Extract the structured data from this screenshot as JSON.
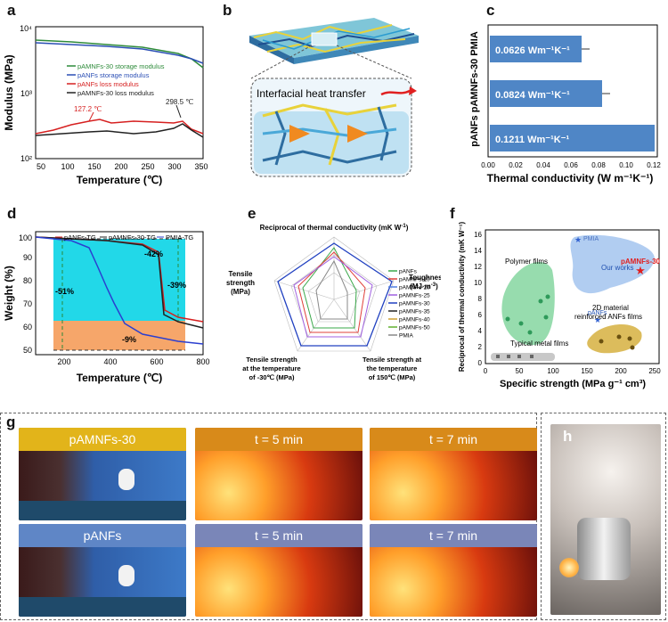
{
  "panel_labels": {
    "a": "a",
    "b": "b",
    "c": "c",
    "d": "d",
    "e": "e",
    "f": "f",
    "g": "g",
    "h": "h"
  },
  "panel_a": {
    "ylabel": "Modulus (MPa)",
    "xlabel": "Temperature (℃)",
    "y_ticks": [
      "10²",
      "10³",
      "10⁴"
    ],
    "x_ticks": [
      "50",
      "100",
      "150",
      "200",
      "250",
      "300",
      "350"
    ],
    "legend": [
      "pAMNFs-30 storage modulus",
      "pANFs storage modulus",
      "pANFs loss modulus",
      "pAMNFs-30 loss modulus"
    ],
    "ann1": "127.2 ℃",
    "ann2": "298.5 ℃",
    "colors": {
      "green": "#2e8b3a",
      "blue": "#2b4fb5",
      "red": "#d62020",
      "black": "#222222"
    }
  },
  "panel_b": {
    "caption": "Interfacial heat transfer"
  },
  "panel_c": {
    "categories": [
      "PMIA",
      "pAMNFs-30",
      "pANFs"
    ],
    "ylabel": "pANFs pAMNFs-30   PMIA",
    "xlabel": "Thermal conductivity (W m⁻¹K⁻¹)",
    "x_ticks": [
      "0.00",
      "0.02",
      "0.04",
      "0.06",
      "0.08",
      "0.10",
      "0.12"
    ],
    "bar_labels": [
      "0.0626 Wm⁻¹K⁻¹",
      "0.0824 Wm⁻¹K⁻¹",
      "0.1211 Wm⁻¹K⁻¹"
    ]
  },
  "panel_d": {
    "ylabel": "Weight (%)",
    "xlabel": "Temperature (℃)",
    "y_ticks": [
      "50",
      "60",
      "70",
      "80",
      "90",
      "100"
    ],
    "x_ticks": [
      "200",
      "400",
      "600",
      "800"
    ],
    "legend": [
      "pANFs-TG",
      "pAMNFs-30-TG",
      "PMIA-TG"
    ],
    "ann_51": "-51%",
    "ann_42": "-42%",
    "ann_39": "-39%",
    "ann_9": "-9%"
  },
  "panel_e": {
    "axes": [
      "Reciprocal of thermal conductivity (mK W⁻¹)",
      "Toughness (MJ·m⁻³)",
      "Tensile strength at the temperature of 150℃ (MPa)",
      "Tensile strength at the temperature of -30℃ (MPa)",
      "Tensile strength (MPa)"
    ],
    "ax_top": "Reciprocal of thermal conductivity (mK W",
    "ax_top_sup": "-1",
    "ax_top_end": ")",
    "ax_right1": "Toughness",
    "ax_right2": "(MJ·m",
    "ax_right2_sup": "-3",
    "ax_right2_end": ")",
    "ax_left1": "Tensile",
    "ax_left2": "strength",
    "ax_left3": "(MPa)",
    "ax_bl1": "Tensile strength",
    "ax_bl2": "at the temperature",
    "ax_bl3": "of -30℃ (MPa)",
    "ax_br1": "Tensile strength at",
    "ax_br2": "the temperature",
    "ax_br3": "of 150℃ (MPa)",
    "legend": [
      "pANFs",
      "pAMNFs-10",
      "pAMNFs-20",
      "pAMNFs-25",
      "pAMNFs-30",
      "pAMNFs-35",
      "pAMNFs-40",
      "pAMNFs-50",
      "PMIA"
    ],
    "legend_colors": [
      "#3aa84a",
      "#e0403a",
      "#5080e0",
      "#a060e0",
      "#2040c0",
      "#222222",
      "#d0a030",
      "#60b030",
      "#888888"
    ]
  },
  "panel_f": {
    "ylabel": "Reciprocal of thermal conductivity (mK W⁻¹)",
    "xlabel": "Specific strength (MPa g⁻¹ cm³)",
    "x_ticks": [
      "0",
      "50",
      "100",
      "150",
      "200",
      "250"
    ],
    "y_ticks": [
      "0",
      "2",
      "4",
      "6",
      "8",
      "10",
      "12",
      "14",
      "16"
    ],
    "labels": {
      "polymer": "Polymer films",
      "pmia": "PMIA",
      "pamnfs": "pAMNFs-30",
      "ourworks": "Our works",
      "panfs": "pANFs",
      "twod1": "2D material",
      "twod2": "reinforced ANFs films",
      "metal": "Typical metal films"
    }
  },
  "panel_g": {
    "row1": [
      "pAMNFs-30",
      "t = 5 min",
      "t = 7 min"
    ],
    "row2": [
      "pANFs",
      "t = 5 min",
      "t = 7 min"
    ]
  }
}
